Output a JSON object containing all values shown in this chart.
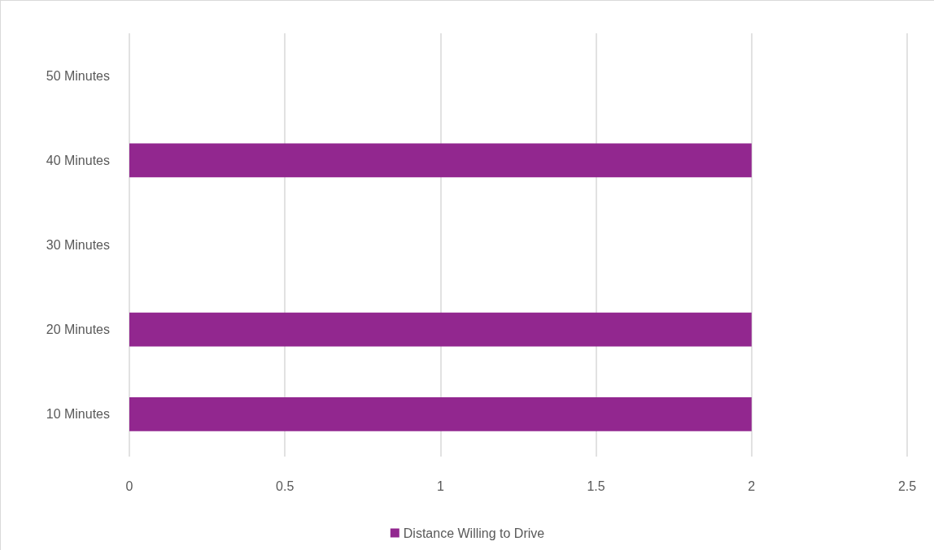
{
  "chart_data": {
    "type": "bar",
    "orientation": "horizontal",
    "categories": [
      "50 Minutes",
      "40 Minutes",
      "30 Minutes",
      "20 Minutes",
      "10 Minutes"
    ],
    "series": [
      {
        "name": "Distance Willing to Drive",
        "color": "#92278f",
        "values": [
          0,
          2,
          0,
          2,
          2
        ]
      }
    ],
    "xlim": [
      0,
      2.5
    ],
    "xticks": [
      0,
      0.5,
      1,
      1.5,
      2,
      2.5
    ],
    "grid": "x",
    "legend": "bottom"
  }
}
